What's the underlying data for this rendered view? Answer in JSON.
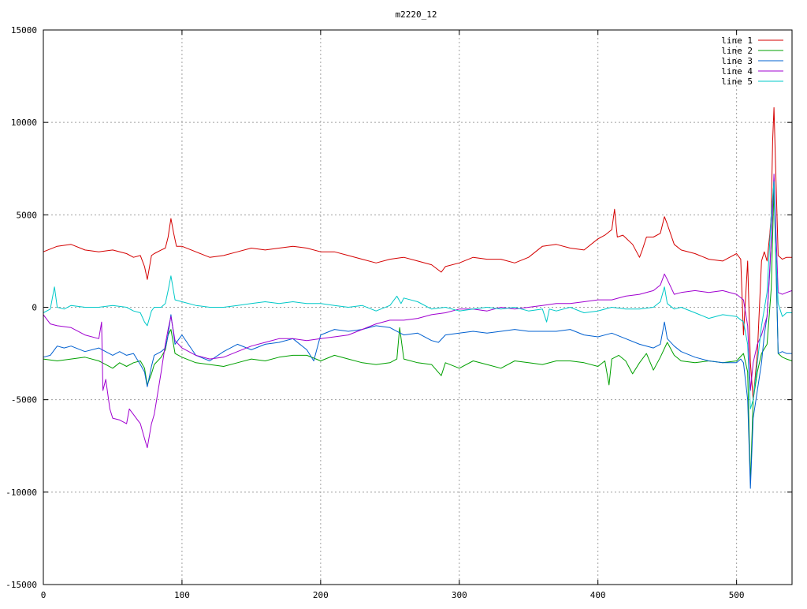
{
  "chart_data": {
    "type": "line",
    "title": "m2220_12",
    "xlabel": "",
    "ylabel": "",
    "xlim": [
      0,
      540
    ],
    "ylim": [
      -15000,
      15000
    ],
    "xticks": [
      0,
      100,
      200,
      300,
      400,
      500
    ],
    "yticks": [
      -15000,
      -10000,
      -5000,
      0,
      5000,
      10000,
      15000
    ],
    "grid": true,
    "legend_position": "top-right",
    "series": [
      {
        "name": "line 1",
        "color": "#d40000",
        "x": [
          0,
          10,
          20,
          30,
          40,
          50,
          60,
          65,
          70,
          73,
          75,
          78,
          80,
          85,
          88,
          90,
          92,
          94,
          96,
          100,
          110,
          120,
          130,
          140,
          150,
          160,
          170,
          180,
          190,
          200,
          210,
          220,
          230,
          240,
          250,
          260,
          270,
          280,
          287,
          290,
          300,
          310,
          320,
          330,
          340,
          350,
          360,
          370,
          380,
          390,
          400,
          405,
          410,
          412,
          414,
          418,
          425,
          430,
          432,
          435,
          440,
          445,
          448,
          450,
          455,
          460,
          470,
          480,
          490,
          495,
          500,
          503,
          505,
          508,
          510,
          512,
          515,
          518,
          520,
          522,
          524,
          525,
          526,
          527,
          528,
          530,
          533,
          536,
          540
        ],
        "y": [
          3000,
          3300,
          3400,
          3100,
          3000,
          3100,
          2900,
          2700,
          2800,
          2200,
          1500,
          2800,
          2900,
          3100,
          3200,
          3800,
          4800,
          4000,
          3300,
          3300,
          3000,
          2700,
          2800,
          3000,
          3200,
          3100,
          3200,
          3300,
          3200,
          3000,
          3000,
          2800,
          2600,
          2400,
          2600,
          2700,
          2500,
          2300,
          1900,
          2200,
          2400,
          2700,
          2600,
          2600,
          2400,
          2700,
          3300,
          3400,
          3200,
          3100,
          3700,
          3900,
          4200,
          5300,
          3800,
          3900,
          3400,
          2700,
          3100,
          3800,
          3800,
          4000,
          4900,
          4500,
          3400,
          3100,
          2900,
          2600,
          2500,
          2700,
          2900,
          2600,
          -1500,
          2500,
          -3000,
          -5000,
          -2500,
          2500,
          3000,
          2500,
          4000,
          5000,
          9000,
          10800,
          8000,
          2800,
          2600,
          2700,
          2700
        ]
      },
      {
        "name": "line 2",
        "color": "#00a000",
        "x": [
          0,
          10,
          20,
          30,
          40,
          50,
          55,
          60,
          65,
          70,
          73,
          75,
          78,
          80,
          85,
          88,
          90,
          92,
          95,
          100,
          110,
          120,
          130,
          140,
          150,
          160,
          170,
          180,
          190,
          200,
          210,
          220,
          230,
          240,
          250,
          255,
          257,
          260,
          270,
          280,
          287,
          290,
          300,
          310,
          320,
          330,
          340,
          350,
          360,
          370,
          380,
          390,
          400,
          405,
          408,
          410,
          415,
          420,
          425,
          430,
          435,
          440,
          445,
          450,
          455,
          460,
          470,
          480,
          490,
          500,
          505,
          508,
          510,
          512,
          515,
          518,
          522,
          525,
          527,
          528,
          530,
          533,
          536,
          540
        ],
        "y": [
          -2800,
          -2900,
          -2800,
          -2700,
          -2900,
          -3300,
          -3000,
          -3200,
          -3000,
          -2900,
          -3300,
          -4200,
          -3600,
          -3100,
          -2700,
          -2300,
          -1500,
          -1200,
          -2500,
          -2700,
          -3000,
          -3100,
          -3200,
          -3000,
          -2800,
          -2900,
          -2700,
          -2600,
          -2600,
          -2900,
          -2600,
          -2800,
          -3000,
          -3100,
          -3000,
          -2800,
          -1100,
          -2800,
          -3000,
          -3100,
          -3700,
          -3000,
          -3300,
          -2900,
          -3100,
          -3300,
          -2900,
          -3000,
          -3100,
          -2900,
          -2900,
          -3000,
          -3200,
          -2900,
          -4200,
          -2800,
          -2600,
          -2900,
          -3600,
          -3000,
          -2500,
          -3400,
          -2700,
          -1900,
          -2600,
          -2900,
          -3000,
          -2900,
          -3000,
          -2900,
          -2500,
          -3500,
          -9500,
          -5000,
          -3500,
          -2500,
          -2000,
          1000,
          6500,
          3500,
          -2500,
          -2700,
          -2800,
          -2900
        ]
      },
      {
        "name": "line 3",
        "color": "#0060d0",
        "x": [
          0,
          5,
          10,
          15,
          20,
          30,
          40,
          50,
          55,
          60,
          65,
          70,
          73,
          75,
          78,
          80,
          85,
          88,
          90,
          92,
          95,
          100,
          110,
          120,
          130,
          140,
          150,
          160,
          170,
          180,
          190,
          195,
          200,
          210,
          220,
          230,
          240,
          250,
          260,
          270,
          280,
          285,
          290,
          300,
          310,
          320,
          330,
          340,
          350,
          360,
          370,
          380,
          390,
          400,
          410,
          420,
          430,
          440,
          445,
          448,
          450,
          455,
          460,
          470,
          480,
          490,
          500,
          503,
          505,
          508,
          510,
          512,
          515,
          518,
          520,
          522,
          524,
          526,
          527,
          528,
          530,
          533,
          536,
          540
        ],
        "y": [
          -2700,
          -2600,
          -2100,
          -2200,
          -2100,
          -2400,
          -2200,
          -2600,
          -2400,
          -2600,
          -2500,
          -3100,
          -3500,
          -4300,
          -3200,
          -2600,
          -2400,
          -2200,
          -1500,
          -400,
          -2000,
          -1500,
          -2600,
          -2900,
          -2400,
          -2000,
          -2300,
          -2000,
          -1900,
          -1700,
          -2300,
          -2900,
          -1500,
          -1200,
          -1300,
          -1200,
          -1000,
          -1100,
          -1500,
          -1400,
          -1800,
          -1900,
          -1500,
          -1400,
          -1300,
          -1400,
          -1300,
          -1200,
          -1300,
          -1300,
          -1300,
          -1200,
          -1500,
          -1600,
          -1400,
          -1700,
          -2000,
          -2200,
          -2000,
          -800,
          -1700,
          -2100,
          -2400,
          -2700,
          -2900,
          -3000,
          -3000,
          -2800,
          -3000,
          -5000,
          -9800,
          -6000,
          -4500,
          -3000,
          -1500,
          -500,
          2000,
          5500,
          7000,
          4000,
          -2500,
          -2400,
          -2500,
          -2500
        ]
      },
      {
        "name": "line 4",
        "color": "#a000d0",
        "x": [
          0,
          5,
          10,
          20,
          30,
          40,
          42,
          43,
          45,
          48,
          50,
          55,
          60,
          62,
          65,
          68,
          70,
          73,
          75,
          78,
          80,
          85,
          88,
          90,
          92,
          95,
          100,
          110,
          120,
          130,
          140,
          150,
          160,
          170,
          180,
          190,
          200,
          210,
          220,
          230,
          240,
          250,
          260,
          270,
          280,
          290,
          300,
          310,
          320,
          330,
          340,
          350,
          360,
          370,
          380,
          390,
          400,
          410,
          420,
          430,
          440,
          445,
          448,
          450,
          455,
          460,
          470,
          480,
          490,
          500,
          505,
          508,
          510,
          512,
          515,
          518,
          522,
          525,
          527,
          528,
          530,
          533,
          536,
          540
        ],
        "y": [
          -400,
          -900,
          -1000,
          -1100,
          -1500,
          -1700,
          -800,
          -4500,
          -3900,
          -5500,
          -6000,
          -6100,
          -6300,
          -5500,
          -5800,
          -6100,
          -6300,
          -7100,
          -7600,
          -6300,
          -5800,
          -3500,
          -2000,
          -1200,
          -500,
          -1800,
          -2200,
          -2600,
          -2800,
          -2700,
          -2400,
          -2100,
          -1900,
          -1700,
          -1700,
          -1800,
          -1700,
          -1600,
          -1500,
          -1200,
          -900,
          -700,
          -700,
          -600,
          -400,
          -300,
          -100,
          -100,
          -200,
          0,
          -100,
          0,
          100,
          200,
          200,
          300,
          400,
          400,
          600,
          700,
          900,
          1200,
          1800,
          1500,
          700,
          800,
          900,
          800,
          900,
          700,
          400,
          -1000,
          -4500,
          -3000,
          -2000,
          -1500,
          -500,
          3500,
          7200,
          5000,
          800,
          700,
          800,
          900
        ]
      },
      {
        "name": "line 5",
        "color": "#00c8c8",
        "x": [
          0,
          5,
          8,
          10,
          15,
          20,
          30,
          40,
          50,
          60,
          65,
          70,
          73,
          75,
          78,
          80,
          85,
          88,
          90,
          92,
          95,
          100,
          110,
          120,
          130,
          140,
          150,
          160,
          170,
          180,
          190,
          200,
          210,
          220,
          230,
          240,
          250,
          255,
          258,
          260,
          270,
          280,
          290,
          300,
          310,
          320,
          330,
          340,
          350,
          360,
          363,
          365,
          370,
          380,
          390,
          400,
          410,
          420,
          430,
          440,
          445,
          448,
          450,
          455,
          460,
          470,
          480,
          490,
          500,
          505,
          508,
          510,
          512,
          515,
          518,
          522,
          525,
          527,
          528,
          530,
          533,
          536,
          540
        ],
        "y": [
          -300,
          -100,
          1100,
          0,
          -100,
          100,
          0,
          0,
          100,
          0,
          -200,
          -300,
          -800,
          -1000,
          -200,
          0,
          0,
          200,
          900,
          1700,
          400,
          300,
          100,
          0,
          0,
          100,
          200,
          300,
          200,
          300,
          200,
          200,
          100,
          0,
          100,
          -200,
          100,
          600,
          200,
          500,
          300,
          -100,
          0,
          -200,
          -100,
          0,
          -100,
          0,
          -200,
          -100,
          -800,
          -100,
          -200,
          0,
          -300,
          -200,
          0,
          -100,
          -100,
          0,
          300,
          1100,
          200,
          -100,
          0,
          -300,
          -600,
          -400,
          -500,
          -800,
          -2000,
          -5500,
          -5000,
          -3000,
          -1000,
          800,
          5000,
          6800,
          3500,
          200,
          -500,
          -300,
          -300
        ]
      }
    ]
  }
}
